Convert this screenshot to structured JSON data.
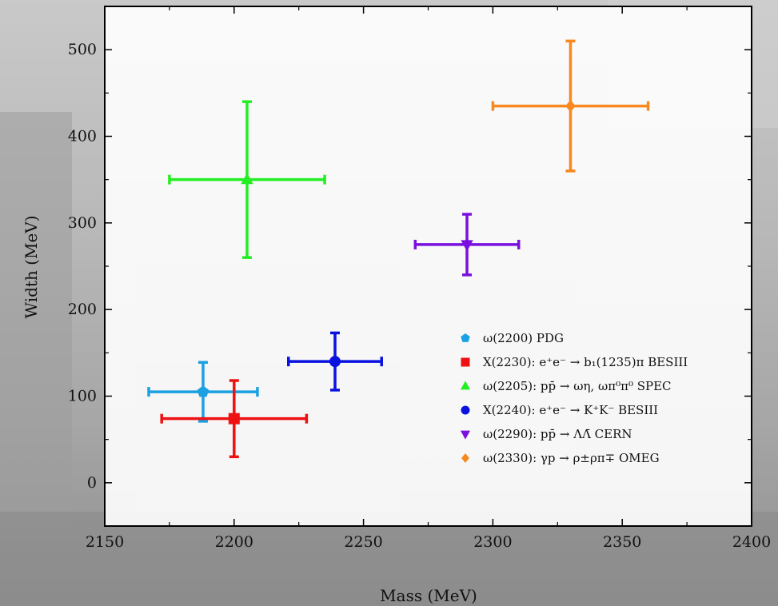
{
  "chart_data": {
    "type": "scatter",
    "title": "",
    "xlabel": "Mass (MeV)",
    "ylabel": "Width (MeV)",
    "xlim": [
      2150,
      2400
    ],
    "ylim": [
      -50,
      550
    ],
    "x_ticks": [
      2150,
      2200,
      2250,
      2300,
      2350,
      2400
    ],
    "x_tick_labels": [
      "2150",
      "2200",
      "2250",
      "2300",
      "2350",
      "2400"
    ],
    "y_ticks": [
      0,
      100,
      200,
      300,
      400,
      500
    ],
    "y_tick_labels": [
      "0",
      "100",
      "200",
      "300",
      "400",
      "500"
    ],
    "grid": false,
    "legend_position": "lower-right",
    "series": [
      {
        "name": "ω(2200) PDG",
        "marker": "pentagon",
        "color": "#1ba1e2",
        "x": 2188,
        "y": 105,
        "xerr": [
          21,
          21
        ],
        "yerr": [
          34,
          34
        ]
      },
      {
        "name": "X(2230): e⁺e⁻ → b₁(1235)π BESIII",
        "marker": "square",
        "color": "#ee1111",
        "x": 2200,
        "y": 74,
        "xerr": [
          28,
          28
        ],
        "yerr": [
          44,
          44
        ]
      },
      {
        "name": "ω(2205): pp̄ → ωη, ωπ⁰π⁰ SPEC",
        "marker": "triangle-up",
        "color": "#22ee22",
        "x": 2205,
        "y": 350,
        "xerr": [
          30,
          30
        ],
        "yerr": [
          90,
          90
        ]
      },
      {
        "name": "X(2240): e⁺e⁻ → K⁺K⁻ BESIII",
        "marker": "circle",
        "color": "#0a12e0",
        "x": 2239,
        "y": 140,
        "xerr": [
          18,
          18
        ],
        "yerr": [
          33,
          33
        ]
      },
      {
        "name": "ω(2290): pp̄ → ΛΛ̄  CERN",
        "marker": "triangle-down",
        "color": "#7a10e0",
        "x": 2290,
        "y": 275,
        "xerr": [
          20,
          20
        ],
        "yerr": [
          35,
          35
        ]
      },
      {
        "name": "ω(2330): γp → ρ±ρπ∓ OMEG",
        "marker": "diamond",
        "color": "#f7891f",
        "x": 2330,
        "y": 435,
        "xerr": [
          30,
          30
        ],
        "yerr": [
          75,
          75
        ]
      }
    ]
  }
}
